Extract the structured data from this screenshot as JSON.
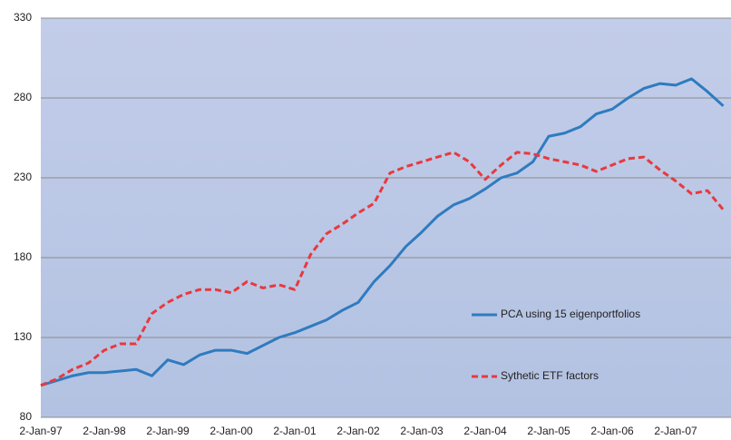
{
  "chart_data": {
    "type": "line",
    "categories": [
      "2-Jan-97",
      null,
      null,
      null,
      "2-Jan-98",
      null,
      null,
      null,
      "2-Jan-99",
      null,
      null,
      null,
      "2-Jan-00",
      null,
      null,
      null,
      "2-Jan-01",
      null,
      null,
      null,
      "2-Jan-02",
      null,
      null,
      null,
      "2-Jan-03",
      null,
      null,
      null,
      "2-Jan-04",
      null,
      null,
      null,
      "2-Jan-05",
      null,
      null,
      null,
      "2-Jan-06",
      null,
      null,
      null,
      "2-Jan-07",
      null,
      null,
      null
    ],
    "series": [
      {
        "name": "PCA using 15 eigenportfolios",
        "color": "#2f7bbf",
        "dash": false,
        "values": [
          100,
          103,
          106,
          108,
          108,
          109,
          110,
          106,
          116,
          113,
          119,
          122,
          122,
          120,
          125,
          130,
          133,
          137,
          141,
          147,
          152,
          165,
          175,
          187,
          196,
          206,
          213,
          217,
          223,
          230,
          233,
          240,
          256,
          258,
          262,
          270,
          273,
          280,
          286,
          289,
          288,
          292,
          284,
          275
        ]
      },
      {
        "name": "Sythetic ETF factors",
        "color": "#e8393e",
        "dash": true,
        "values": [
          100,
          104,
          110,
          114,
          122,
          126,
          126,
          145,
          152,
          157,
          160,
          160,
          158,
          165,
          161,
          163,
          160,
          182,
          195,
          201,
          208,
          214,
          233,
          237,
          240,
          243,
          246,
          240,
          229,
          238,
          246,
          245,
          242,
          240,
          238,
          234,
          238,
          242,
          243,
          235,
          228,
          220,
          222,
          210
        ]
      }
    ],
    "ylim": [
      80,
      330
    ],
    "yticks": [
      80,
      130,
      180,
      230,
      280,
      330
    ],
    "grid": true
  }
}
